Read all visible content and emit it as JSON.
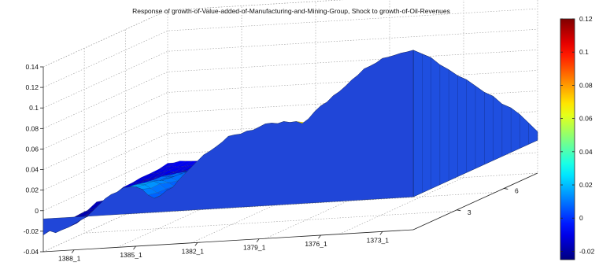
{
  "chart_data": {
    "type": "surface",
    "title": "Response of growth-of-Value-added-of-Manufacturing-and-Mining-Group, Shock to growth-of-Oil-Revenues",
    "x_ticks": [
      "1388_1",
      "1385_1",
      "1382_1",
      "1379_1",
      "1376_1",
      "1373_1"
    ],
    "y_ticks": [
      "3",
      "6"
    ],
    "z_ticks": [
      "-0.04",
      "-0.02",
      "0",
      "0.02",
      "0.04",
      "0.06",
      "0.08",
      "0.1",
      "0.12",
      "0.14"
    ],
    "zlim": [
      -0.04,
      0.14
    ],
    "colorbar": {
      "ticks": [
        "-0.02",
        "0",
        "0.02",
        "0.04",
        "0.06",
        "0.08",
        "0.1",
        "0.12"
      ],
      "clim": [
        -0.025,
        0.12
      ],
      "colormap": "jet"
    },
    "x_time_span": [
      "1388_1",
      "1373_1"
    ],
    "surface_profile": {
      "description_series": "peak response at horizon 3 along time axis (left = 1388_1, right = 1373_1)",
      "x": [
        0,
        0.05,
        0.1,
        0.15,
        0.2,
        0.25,
        0.3,
        0.35,
        0.4,
        0.45,
        0.5,
        0.55,
        0.6,
        0.65,
        0.7,
        0.75,
        0.8,
        0.85,
        0.9,
        0.95,
        1.0
      ],
      "values": [
        -0.022,
        -0.02,
        -0.012,
        0.002,
        0.015,
        0.018,
        0.005,
        0.015,
        0.035,
        0.05,
        0.06,
        0.066,
        0.07,
        0.072,
        0.07,
        0.085,
        0.1,
        0.115,
        0.125,
        0.132,
        0.136
      ]
    }
  }
}
